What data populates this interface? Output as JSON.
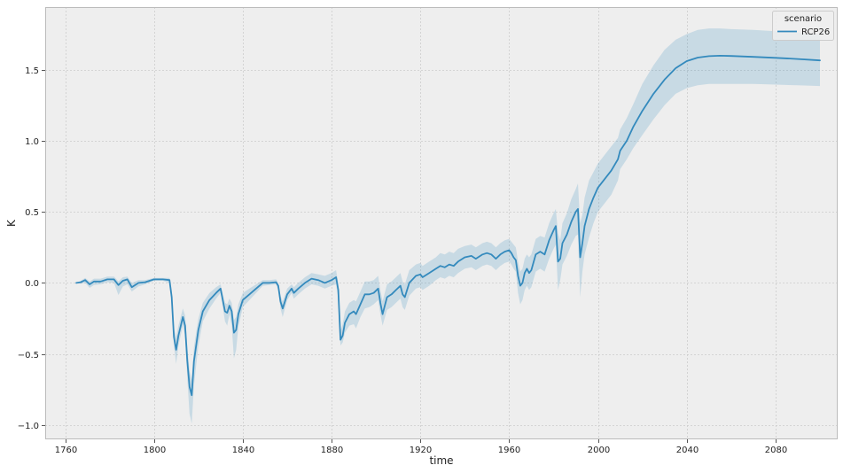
{
  "chart_data": {
    "type": "line",
    "xlabel": "time",
    "ylabel": "K",
    "xlim": [
      1751,
      2108
    ],
    "ylim": [
      -1.1,
      1.94
    ],
    "x_ticks": [
      1760,
      1800,
      1840,
      1880,
      1920,
      1960,
      2000,
      2040,
      2080
    ],
    "y_ticks": [
      -1.0,
      -0.5,
      0.0,
      0.5,
      1.0,
      1.5
    ],
    "y_tick_labels": [
      "−1.0",
      "−0.5",
      "0.0",
      "0.5",
      "1.0",
      "1.5"
    ],
    "grid": true,
    "legend": {
      "title": "scenario",
      "placement": "top-right"
    },
    "series": [
      {
        "name": "RCP26",
        "color": "#348abd",
        "band_color": "#348abd",
        "points": [
          [
            1765,
            0.0,
            0.0,
            0.0
          ],
          [
            1767,
            0.005,
            -0.005,
            0.015
          ],
          [
            1769,
            0.02,
            0.0,
            0.035
          ],
          [
            1771,
            -0.01,
            -0.035,
            0.01
          ],
          [
            1773,
            0.01,
            -0.015,
            0.03
          ],
          [
            1776,
            0.01,
            -0.01,
            0.03
          ],
          [
            1779,
            0.025,
            0.005,
            0.045
          ],
          [
            1782,
            0.025,
            0.0,
            0.045
          ],
          [
            1784,
            -0.015,
            -0.085,
            0.01
          ],
          [
            1786,
            0.015,
            -0.025,
            0.04
          ],
          [
            1788,
            0.025,
            -0.01,
            0.045
          ],
          [
            1790,
            -0.03,
            -0.06,
            0.0
          ],
          [
            1793,
            0.0,
            -0.025,
            0.02
          ],
          [
            1796,
            0.005,
            -0.01,
            0.02
          ],
          [
            1800,
            0.025,
            0.015,
            0.035
          ],
          [
            1804,
            0.025,
            0.015,
            0.035
          ],
          [
            1807,
            0.02,
            0.0,
            0.035
          ],
          [
            1808,
            -0.1,
            -0.15,
            -0.05
          ],
          [
            1809,
            -0.38,
            -0.44,
            -0.32
          ],
          [
            1810,
            -0.47,
            -0.57,
            -0.38
          ],
          [
            1811,
            -0.37,
            -0.44,
            -0.3
          ],
          [
            1813,
            -0.24,
            -0.3,
            -0.18
          ],
          [
            1814,
            -0.3,
            -0.37,
            -0.23
          ],
          [
            1815,
            -0.55,
            -0.67,
            -0.45
          ],
          [
            1816,
            -0.73,
            -0.92,
            -0.62
          ],
          [
            1817,
            -0.79,
            -0.99,
            -0.68
          ],
          [
            1818,
            -0.55,
            -0.72,
            -0.45
          ],
          [
            1820,
            -0.33,
            -0.44,
            -0.25
          ],
          [
            1822,
            -0.2,
            -0.27,
            -0.14
          ],
          [
            1825,
            -0.12,
            -0.18,
            -0.07
          ],
          [
            1828,
            -0.07,
            -0.11,
            -0.03
          ],
          [
            1830,
            -0.04,
            -0.07,
            -0.01
          ],
          [
            1832,
            -0.2,
            -0.27,
            -0.14
          ],
          [
            1833,
            -0.21,
            -0.3,
            -0.15
          ],
          [
            1834,
            -0.16,
            -0.22,
            -0.11
          ],
          [
            1835,
            -0.2,
            -0.3,
            -0.14
          ],
          [
            1836,
            -0.35,
            -0.53,
            -0.26
          ],
          [
            1837,
            -0.33,
            -0.47,
            -0.24
          ],
          [
            1838,
            -0.22,
            -0.31,
            -0.15
          ],
          [
            1840,
            -0.12,
            -0.17,
            -0.07
          ],
          [
            1843,
            -0.08,
            -0.12,
            -0.04
          ],
          [
            1846,
            -0.04,
            -0.07,
            -0.01
          ],
          [
            1849,
            0.0,
            -0.02,
            0.02
          ],
          [
            1852,
            0.0,
            -0.015,
            0.02
          ],
          [
            1855,
            0.005,
            -0.01,
            0.025
          ],
          [
            1856,
            -0.02,
            -0.05,
            0.0
          ],
          [
            1857,
            -0.13,
            -0.18,
            -0.09
          ],
          [
            1858,
            -0.18,
            -0.24,
            -0.13
          ],
          [
            1860,
            -0.08,
            -0.12,
            -0.04
          ],
          [
            1862,
            -0.04,
            -0.07,
            -0.01
          ],
          [
            1863,
            -0.07,
            -0.11,
            -0.03
          ],
          [
            1865,
            -0.04,
            -0.08,
            0.0
          ],
          [
            1868,
            0.0,
            -0.04,
            0.04
          ],
          [
            1871,
            0.03,
            -0.01,
            0.07
          ],
          [
            1874,
            0.02,
            -0.02,
            0.06
          ],
          [
            1877,
            0.0,
            -0.04,
            0.05
          ],
          [
            1880,
            0.02,
            -0.02,
            0.07
          ],
          [
            1882,
            0.04,
            -0.01,
            0.09
          ],
          [
            1883,
            -0.05,
            -0.11,
            0.0
          ],
          [
            1884,
            -0.4,
            -0.44,
            -0.34
          ],
          [
            1885,
            -0.37,
            -0.42,
            -0.29
          ],
          [
            1886,
            -0.28,
            -0.35,
            -0.2
          ],
          [
            1888,
            -0.22,
            -0.3,
            -0.14
          ],
          [
            1890,
            -0.2,
            -0.29,
            -0.12
          ],
          [
            1891,
            -0.22,
            -0.32,
            -0.13
          ],
          [
            1893,
            -0.15,
            -0.24,
            -0.06
          ],
          [
            1895,
            -0.08,
            -0.18,
            0.01
          ],
          [
            1897,
            -0.08,
            -0.17,
            0.01
          ],
          [
            1899,
            -0.07,
            -0.15,
            0.02
          ],
          [
            1901,
            -0.04,
            -0.12,
            0.05
          ],
          [
            1902,
            -0.14,
            -0.22,
            -0.05
          ],
          [
            1903,
            -0.22,
            -0.3,
            -0.13
          ],
          [
            1905,
            -0.1,
            -0.19,
            -0.01
          ],
          [
            1907,
            -0.08,
            -0.17,
            0.01
          ],
          [
            1909,
            -0.05,
            -0.14,
            0.04
          ],
          [
            1911,
            -0.02,
            -0.11,
            0.07
          ],
          [
            1912,
            -0.08,
            -0.17,
            0.01
          ],
          [
            1913,
            -0.1,
            -0.19,
            -0.01
          ],
          [
            1915,
            0.0,
            -0.09,
            0.09
          ],
          [
            1918,
            0.05,
            -0.04,
            0.13
          ],
          [
            1920,
            0.06,
            -0.03,
            0.14
          ],
          [
            1921,
            0.04,
            -0.05,
            0.12
          ],
          [
            1924,
            0.07,
            -0.02,
            0.15
          ],
          [
            1927,
            0.1,
            0.02,
            0.18
          ],
          [
            1929,
            0.12,
            0.04,
            0.21
          ],
          [
            1931,
            0.11,
            0.03,
            0.2
          ],
          [
            1933,
            0.13,
            0.05,
            0.22
          ],
          [
            1935,
            0.12,
            0.04,
            0.21
          ],
          [
            1937,
            0.15,
            0.07,
            0.24
          ],
          [
            1940,
            0.18,
            0.1,
            0.26
          ],
          [
            1943,
            0.19,
            0.11,
            0.27
          ],
          [
            1945,
            0.17,
            0.09,
            0.25
          ],
          [
            1948,
            0.2,
            0.12,
            0.28
          ],
          [
            1950,
            0.21,
            0.13,
            0.29
          ],
          [
            1952,
            0.2,
            0.12,
            0.28
          ],
          [
            1954,
            0.17,
            0.09,
            0.25
          ],
          [
            1956,
            0.2,
            0.12,
            0.28
          ],
          [
            1958,
            0.22,
            0.14,
            0.3
          ],
          [
            1960,
            0.23,
            0.15,
            0.31
          ],
          [
            1961,
            0.21,
            0.13,
            0.29
          ],
          [
            1962,
            0.18,
            0.1,
            0.27
          ],
          [
            1963,
            0.16,
            0.08,
            0.25
          ],
          [
            1964,
            0.05,
            -0.07,
            0.15
          ],
          [
            1965,
            -0.02,
            -0.15,
            0.08
          ],
          [
            1966,
            0.0,
            -0.12,
            0.1
          ],
          [
            1967,
            0.07,
            -0.05,
            0.17
          ],
          [
            1968,
            0.1,
            -0.02,
            0.2
          ],
          [
            1969,
            0.07,
            -0.05,
            0.18
          ],
          [
            1970,
            0.09,
            -0.03,
            0.2
          ],
          [
            1972,
            0.2,
            0.08,
            0.31
          ],
          [
            1974,
            0.22,
            0.1,
            0.33
          ],
          [
            1976,
            0.2,
            0.08,
            0.32
          ],
          [
            1978,
            0.3,
            0.17,
            0.42
          ],
          [
            1980,
            0.37,
            0.24,
            0.49
          ],
          [
            1981,
            0.4,
            0.27,
            0.52
          ],
          [
            1982,
            0.15,
            -0.05,
            0.35
          ],
          [
            1983,
            0.17,
            0.02,
            0.3
          ],
          [
            1984,
            0.28,
            0.13,
            0.42
          ],
          [
            1986,
            0.34,
            0.19,
            0.49
          ],
          [
            1988,
            0.43,
            0.27,
            0.59
          ],
          [
            1990,
            0.5,
            0.33,
            0.66
          ],
          [
            1991,
            0.52,
            0.34,
            0.7
          ],
          [
            1992,
            0.18,
            -0.1,
            0.42
          ],
          [
            1993,
            0.28,
            0.08,
            0.48
          ],
          [
            1994,
            0.4,
            0.2,
            0.6
          ],
          [
            1996,
            0.52,
            0.32,
            0.72
          ],
          [
            1998,
            0.6,
            0.42,
            0.78
          ],
          [
            2000,
            0.67,
            0.5,
            0.84
          ],
          [
            2003,
            0.73,
            0.56,
            0.9
          ],
          [
            2006,
            0.79,
            0.62,
            0.96
          ],
          [
            2009,
            0.87,
            0.72,
            1.02
          ],
          [
            2010,
            0.93,
            0.8,
            1.08
          ],
          [
            2013,
            1.0,
            0.87,
            1.16
          ],
          [
            2016,
            1.1,
            0.95,
            1.26
          ],
          [
            2020,
            1.21,
            1.04,
            1.4
          ],
          [
            2025,
            1.33,
            1.15,
            1.53
          ],
          [
            2030,
            1.43,
            1.25,
            1.64
          ],
          [
            2035,
            1.51,
            1.33,
            1.71
          ],
          [
            2040,
            1.56,
            1.37,
            1.75
          ],
          [
            2045,
            1.585,
            1.39,
            1.78
          ],
          [
            2050,
            1.595,
            1.4,
            1.79
          ],
          [
            2055,
            1.598,
            1.4,
            1.79
          ],
          [
            2060,
            1.596,
            1.4,
            1.785
          ],
          [
            2070,
            1.59,
            1.4,
            1.78
          ],
          [
            2080,
            1.583,
            1.395,
            1.77
          ],
          [
            2090,
            1.575,
            1.39,
            1.76
          ],
          [
            2100,
            1.565,
            1.385,
            1.75
          ]
        ]
      }
    ]
  },
  "style": {
    "plot_bg": "#eeeeee",
    "grid_color": "#cccccc",
    "axis_color": "#bcbcbc"
  }
}
